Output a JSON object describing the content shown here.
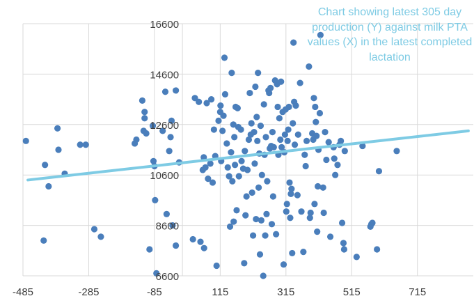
{
  "chart_data": {
    "type": "scatter",
    "title": "",
    "xlabel": "",
    "ylabel": "",
    "xlim": [
      -485,
      885
    ],
    "ylim": [
      6600,
      16600
    ],
    "x_ticks": [
      "-485",
      "-285",
      "-85",
      "115",
      "315",
      "515",
      "715"
    ],
    "y_ticks": [
      "16600",
      "14600",
      "12600",
      "10600",
      "8600",
      "6600"
    ],
    "annotation": "Chart showing latest 305 day production (Y) against milk PTA values (X) in the latest completed lactation",
    "grid": true,
    "series": [
      {
        "values": [
          {
            "x": -476,
            "y": 11950
          },
          {
            "x": -418,
            "y": 11000
          },
          {
            "x": -422,
            "y": 8000
          },
          {
            "x": -407,
            "y": 10150
          },
          {
            "x": -380,
            "y": 12450
          },
          {
            "x": -377,
            "y": 11600
          },
          {
            "x": -358,
            "y": 10650
          },
          {
            "x": -311,
            "y": 11800
          },
          {
            "x": -294,
            "y": 11800
          },
          {
            "x": -268,
            "y": 8450
          },
          {
            "x": -248,
            "y": 8150
          },
          {
            "x": -145,
            "y": 11850
          },
          {
            "x": -140,
            "y": 12000
          },
          {
            "x": -122,
            "y": 13550
          },
          {
            "x": -118,
            "y": 12350
          },
          {
            "x": -115,
            "y": 12850
          },
          {
            "x": -115,
            "y": 13100
          },
          {
            "x": -110,
            "y": 12250
          },
          {
            "x": -90,
            "y": 12550
          },
          {
            "x": -88,
            "y": 11150
          },
          {
            "x": -85,
            "y": 10950
          },
          {
            "x": -83,
            "y": 9600
          },
          {
            "x": -79,
            "y": 6700
          },
          {
            "x": -100,
            "y": 7650
          },
          {
            "x": -60,
            "y": 12350
          },
          {
            "x": -52,
            "y": 13900
          },
          {
            "x": -48,
            "y": 9050
          },
          {
            "x": -40,
            "y": 11550
          },
          {
            "x": -36,
            "y": 12100
          },
          {
            "x": -33,
            "y": 12750
          },
          {
            "x": -30,
            "y": 8600
          },
          {
            "x": -20,
            "y": 7800
          },
          {
            "x": -20,
            "y": 13950
          },
          {
            "x": -10,
            "y": 11100
          },
          {
            "x": 38,
            "y": 13650
          },
          {
            "x": 32,
            "y": 8050
          },
          {
            "x": 50,
            "y": 13500
          },
          {
            "x": 55,
            "y": 7950
          },
          {
            "x": 62,
            "y": 10800
          },
          {
            "x": 65,
            "y": 11300
          },
          {
            "x": 66,
            "y": 7700
          },
          {
            "x": 70,
            "y": 10900
          },
          {
            "x": 74,
            "y": 13450
          },
          {
            "x": 78,
            "y": 10450
          },
          {
            "x": 85,
            "y": 11050
          },
          {
            "x": 88,
            "y": 13600
          },
          {
            "x": 92,
            "y": 10300
          },
          {
            "x": 96,
            "y": 12400
          },
          {
            "x": 100,
            "y": 11350
          },
          {
            "x": 104,
            "y": 7000
          },
          {
            "x": 110,
            "y": 12750
          },
          {
            "x": 115,
            "y": 13100
          },
          {
            "x": 116,
            "y": 13350
          },
          {
            "x": 118,
            "y": 11150
          },
          {
            "x": 122,
            "y": 12350
          },
          {
            "x": 125,
            "y": 12950
          },
          {
            "x": 128,
            "y": 15250
          },
          {
            "x": 130,
            "y": 13800
          },
          {
            "x": 135,
            "y": 11850
          },
          {
            "x": 138,
            "y": 10900
          },
          {
            "x": 142,
            "y": 10550
          },
          {
            "x": 145,
            "y": 8550
          },
          {
            "x": 148,
            "y": 11500
          },
          {
            "x": 150,
            "y": 14650
          },
          {
            "x": 152,
            "y": 10350
          },
          {
            "x": 155,
            "y": 12600
          },
          {
            "x": 156,
            "y": 8750
          },
          {
            "x": 158,
            "y": 12100
          },
          {
            "x": 160,
            "y": 11000
          },
          {
            "x": 162,
            "y": 13300
          },
          {
            "x": 165,
            "y": 9200
          },
          {
            "x": 168,
            "y": 13250
          },
          {
            "x": 170,
            "y": 12500
          },
          {
            "x": 172,
            "y": 10550
          },
          {
            "x": 178,
            "y": 12400
          },
          {
            "x": 180,
            "y": 11150
          },
          {
            "x": 185,
            "y": 10850
          },
          {
            "x": 188,
            "y": 7100
          },
          {
            "x": 190,
            "y": 11550
          },
          {
            "x": 192,
            "y": 9000
          },
          {
            "x": 195,
            "y": 9750
          },
          {
            "x": 198,
            "y": 10800
          },
          {
            "x": 202,
            "y": 12000
          },
          {
            "x": 205,
            "y": 13850
          },
          {
            "x": 208,
            "y": 12200
          },
          {
            "x": 210,
            "y": 12650
          },
          {
            "x": 212,
            "y": 9900
          },
          {
            "x": 215,
            "y": 8200
          },
          {
            "x": 218,
            "y": 12300
          },
          {
            "x": 220,
            "y": 11050
          },
          {
            "x": 222,
            "y": 14100
          },
          {
            "x": 224,
            "y": 8850
          },
          {
            "x": 226,
            "y": 12900
          },
          {
            "x": 228,
            "y": 11950
          },
          {
            "x": 230,
            "y": 14650
          },
          {
            "x": 232,
            "y": 10100
          },
          {
            "x": 234,
            "y": 11450
          },
          {
            "x": 236,
            "y": 7450
          },
          {
            "x": 238,
            "y": 12550
          },
          {
            "x": 240,
            "y": 8800
          },
          {
            "x": 242,
            "y": 10600
          },
          {
            "x": 246,
            "y": 6600
          },
          {
            "x": 248,
            "y": 13400
          },
          {
            "x": 250,
            "y": 11400
          },
          {
            "x": 252,
            "y": 8200
          },
          {
            "x": 254,
            "y": 12100
          },
          {
            "x": 256,
            "y": 9050
          },
          {
            "x": 258,
            "y": 10350
          },
          {
            "x": 262,
            "y": 13950
          },
          {
            "x": 264,
            "y": 13850
          },
          {
            "x": 266,
            "y": 11650
          },
          {
            "x": 268,
            "y": 14050
          },
          {
            "x": 270,
            "y": 11750
          },
          {
            "x": 272,
            "y": 8650
          },
          {
            "x": 274,
            "y": 12300
          },
          {
            "x": 276,
            "y": 9750
          },
          {
            "x": 278,
            "y": 11700
          },
          {
            "x": 282,
            "y": 14350
          },
          {
            "x": 285,
            "y": 8250
          },
          {
            "x": 288,
            "y": 14200
          },
          {
            "x": 290,
            "y": 13300
          },
          {
            "x": 292,
            "y": 11400
          },
          {
            "x": 295,
            "y": 12850
          },
          {
            "x": 298,
            "y": 12000
          },
          {
            "x": 300,
            "y": 14300
          },
          {
            "x": 302,
            "y": 11700
          },
          {
            "x": 305,
            "y": 13100
          },
          {
            "x": 308,
            "y": 7050
          },
          {
            "x": 310,
            "y": 11500
          },
          {
            "x": 312,
            "y": 12200
          },
          {
            "x": 314,
            "y": 13200
          },
          {
            "x": 316,
            "y": 9150
          },
          {
            "x": 318,
            "y": 9450
          },
          {
            "x": 320,
            "y": 11950
          },
          {
            "x": 322,
            "y": 12400
          },
          {
            "x": 324,
            "y": 13300
          },
          {
            "x": 326,
            "y": 10300
          },
          {
            "x": 328,
            "y": 8900
          },
          {
            "x": 330,
            "y": 9850
          },
          {
            "x": 332,
            "y": 10050
          },
          {
            "x": 334,
            "y": 7500
          },
          {
            "x": 336,
            "y": 12650
          },
          {
            "x": 338,
            "y": 15850
          },
          {
            "x": 340,
            "y": 13500
          },
          {
            "x": 342,
            "y": 11800
          },
          {
            "x": 345,
            "y": 13350
          },
          {
            "x": 350,
            "y": 9800
          },
          {
            "x": 352,
            "y": 12200
          },
          {
            "x": 358,
            "y": 14250
          },
          {
            "x": 362,
            "y": 9150
          },
          {
            "x": 368,
            "y": 7550
          },
          {
            "x": 372,
            "y": 11400
          },
          {
            "x": 375,
            "y": 10950
          },
          {
            "x": 378,
            "y": 11950
          },
          {
            "x": 385,
            "y": 14900
          },
          {
            "x": 388,
            "y": 8900
          },
          {
            "x": 390,
            "y": 9100
          },
          {
            "x": 395,
            "y": 12250
          },
          {
            "x": 398,
            "y": 12000
          },
          {
            "x": 400,
            "y": 13650
          },
          {
            "x": 402,
            "y": 9450
          },
          {
            "x": 404,
            "y": 13300
          },
          {
            "x": 406,
            "y": 12700
          },
          {
            "x": 408,
            "y": 12150
          },
          {
            "x": 410,
            "y": 8350
          },
          {
            "x": 412,
            "y": 10150
          },
          {
            "x": 414,
            "y": 11600
          },
          {
            "x": 418,
            "y": 13050
          },
          {
            "x": 420,
            "y": 16150
          },
          {
            "x": 428,
            "y": 10100
          },
          {
            "x": 430,
            "y": 9100
          },
          {
            "x": 434,
            "y": 12300
          },
          {
            "x": 438,
            "y": 11200
          },
          {
            "x": 445,
            "y": 11900
          },
          {
            "x": 450,
            "y": 8150
          },
          {
            "x": 460,
            "y": 11700
          },
          {
            "x": 462,
            "y": 11250
          },
          {
            "x": 465,
            "y": 10600
          },
          {
            "x": 472,
            "y": 11000
          },
          {
            "x": 478,
            "y": 11800
          },
          {
            "x": 482,
            "y": 11950
          },
          {
            "x": 486,
            "y": 8700
          },
          {
            "x": 490,
            "y": 7900
          },
          {
            "x": 492,
            "y": 7650
          },
          {
            "x": 494,
            "y": 11550
          },
          {
            "x": 530,
            "y": 7350
          },
          {
            "x": 548,
            "y": 11750
          },
          {
            "x": 572,
            "y": 8550
          },
          {
            "x": 575,
            "y": 8650
          },
          {
            "x": 578,
            "y": 8700
          },
          {
            "x": 592,
            "y": 7650
          },
          {
            "x": 598,
            "y": 10750
          },
          {
            "x": 652,
            "y": 11550
          }
        ]
      }
    ],
    "trendline": {
      "x": [
        -470,
        870
      ],
      "y": [
        10400,
        12350
      ]
    }
  }
}
